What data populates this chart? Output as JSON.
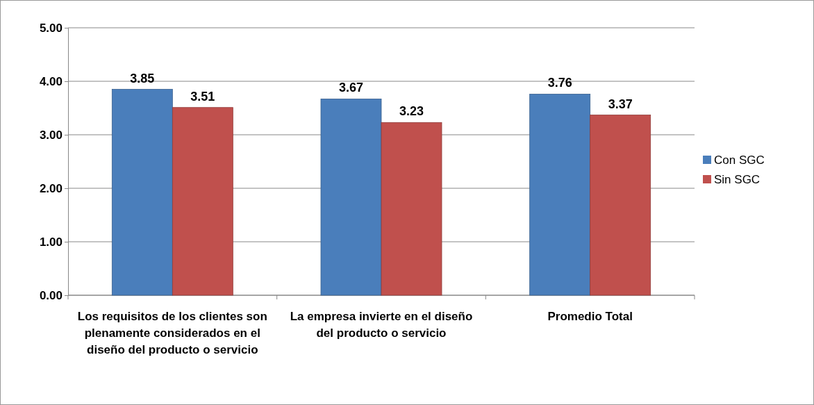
{
  "chart_data": {
    "type": "bar",
    "categories": [
      "Los requisitos de los clientes son plenamente considerados en el diseño del producto o servicio",
      "La empresa invierte en el diseño del producto o servicio",
      "Promedio Total"
    ],
    "series": [
      {
        "name": "Con SGC",
        "color": "#4a7ebb",
        "values": [
          3.85,
          3.67,
          3.76
        ]
      },
      {
        "name": "Sin SGC",
        "color": "#c0504d",
        "values": [
          3.51,
          3.23,
          3.37
        ]
      }
    ],
    "ylim": [
      0,
      5
    ],
    "yticks": [
      {
        "value": 0,
        "label": "0.00"
      },
      {
        "value": 1,
        "label": "1.00"
      },
      {
        "value": 2,
        "label": "2.00"
      },
      {
        "value": 3,
        "label": "3.00"
      },
      {
        "value": 4,
        "label": "4.00"
      },
      {
        "value": 5,
        "label": "5.00"
      }
    ],
    "grid": "y",
    "legend": "right",
    "data_labels": true
  }
}
